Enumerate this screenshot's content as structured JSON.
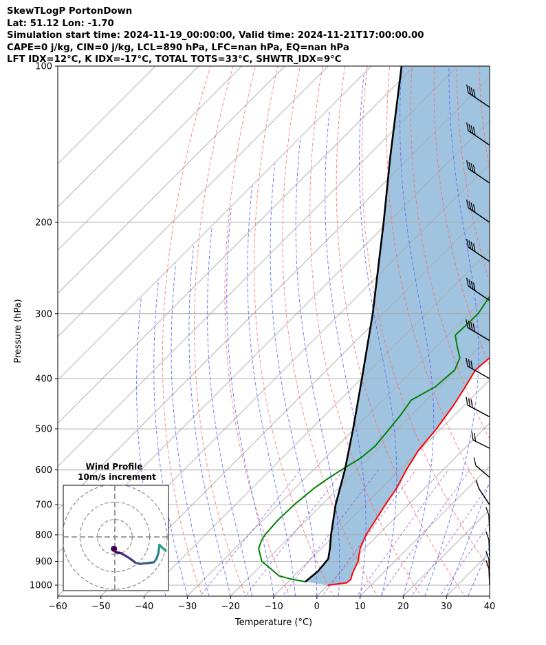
{
  "header": {
    "line1": "SkewTLogP PortonDown",
    "line2": "Lat: 51.12   Lon: -1.70",
    "line3": "Simulation start time: 2024-11-19_00:00:00, Valid time: 2024-11-21T17:00:00.00",
    "line4": "CAPE=0 j/kg, CIN=0 j/kg, LCL=890 hPa, LFC=nan hPa, EQ=nan hPa",
    "line5": "LFT IDX=12°C, K IDX=-17°C, TOTAL TOTS=33°C, SHWTR_IDX=9°C"
  },
  "chart_data": [
    {
      "type": "line",
      "subtype": "skew-t-log-p",
      "xlabel": "Temperature (°C)",
      "ylabel": "Pressure (hPa)",
      "xlim": [
        -60,
        40
      ],
      "ylim": [
        1050,
        100
      ],
      "y_scale": "log",
      "x_ticks": [
        -60,
        -50,
        -40,
        -30,
        -20,
        -10,
        0,
        10,
        20,
        30,
        40
      ],
      "x_tick_labels": [
        "−60",
        "−50",
        "−40",
        "−30",
        "−20",
        "−10",
        "0",
        "10",
        "20",
        "30",
        "40"
      ],
      "y_ticks": [
        100,
        200,
        300,
        400,
        500,
        600,
        700,
        800,
        900,
        1000
      ],
      "y_tick_labels": [
        "100",
        "200",
        "300",
        "400",
        "500",
        "600",
        "700",
        "800",
        "900",
        "1000"
      ],
      "grid": true,
      "colors": {
        "temperature": "#ff0000",
        "dewpoint": "#008000",
        "parcel": "#000000",
        "dry_adiabats": "#ff6666",
        "moist_adiabats": "#5566ff",
        "isotherms": "#a9a9a9",
        "mixing_ratio": "#8844cc",
        "shading": "#a0c4e0"
      },
      "series": [
        {
          "role": "temperature",
          "points": [
            [
              1000,
              0
            ],
            [
              990,
              3.8
            ],
            [
              975,
              4
            ],
            [
              950,
              3
            ],
            [
              900,
              1.5
            ],
            [
              850,
              -1
            ],
            [
              800,
              -2.8
            ],
            [
              750,
              -4
            ],
            [
              700,
              -5.3
            ],
            [
              650,
              -6.5
            ],
            [
              600,
              -8.5
            ],
            [
              550,
              -10.2
            ],
            [
              500,
              -11
            ],
            [
              450,
              -12.5
            ],
            [
              420,
              -13.8
            ],
            [
              385,
              -15.6
            ],
            [
              360,
              -15
            ],
            [
              330,
              -13.7
            ],
            [
              300,
              -13.8
            ],
            [
              280,
              -14
            ],
            [
              260,
              -13.5
            ],
            [
              240,
              -13.8
            ],
            [
              220,
              -15.2
            ],
            [
              200,
              -17.8
            ],
            [
              180,
              -20.5
            ],
            [
              160,
              -23
            ],
            [
              140,
              -27.2
            ],
            [
              120,
              -32.5
            ],
            [
              100,
              -40
            ]
          ]
        },
        {
          "role": "dewpoint",
          "points": [
            [
              985,
              -6
            ],
            [
              975,
              -9.5
            ],
            [
              960,
              -13.4
            ],
            [
              930,
              -17
            ],
            [
              900,
              -20.8
            ],
            [
              850,
              -24.5
            ],
            [
              820,
              -25.7
            ],
            [
              800,
              -26.2
            ],
            [
              750,
              -26.6
            ],
            [
              700,
              -26.4
            ],
            [
              650,
              -25.6
            ],
            [
              620,
              -24.5
            ],
            [
              590,
              -23
            ],
            [
              570,
              -21.8
            ],
            [
              540,
              -21.2
            ],
            [
              510,
              -21.7
            ],
            [
              470,
              -22.5
            ],
            [
              440,
              -23.5
            ],
            [
              415,
              -21
            ],
            [
              385,
              -20.4
            ],
            [
              365,
              -22
            ],
            [
              345,
              -25.6
            ],
            [
              330,
              -28.3
            ],
            [
              300,
              -28
            ],
            [
              270,
              -29.8
            ],
            [
              240,
              -33.5
            ],
            [
              215,
              -38
            ],
            [
              200,
              -42
            ],
            [
              190,
              -44.5
            ],
            [
              150,
              -48
            ],
            [
              120,
              -53
            ],
            [
              100,
              -58
            ]
          ]
        },
        {
          "role": "parcel",
          "points": [
            [
              985,
              -6
            ],
            [
              940,
              -5.5
            ],
            [
              890,
              -6
            ],
            [
              850,
              -8
            ],
            [
              800,
              -10.9
            ],
            [
              700,
              -16.8
            ],
            [
              600,
              -22.7
            ],
            [
              500,
              -30.3
            ],
            [
              400,
              -39.9
            ],
            [
              300,
              -52.4
            ],
            [
              200,
              -71
            ],
            [
              150,
              -84.5
            ],
            [
              100,
              -103
            ]
          ]
        }
      ]
    },
    {
      "type": "scatter",
      "subtype": "hodograph",
      "title": "Wind Profile",
      "subtitle": "10m/s increment",
      "rings": [
        10,
        20,
        30
      ],
      "x_range": [
        -30,
        30
      ],
      "y_range": [
        -30,
        30
      ],
      "x": [
        -0.5,
        -0.2,
        1,
        2.2,
        3.6,
        6,
        9,
        12,
        14.6,
        16.4,
        19,
        22.5,
        24,
        24.9,
        25.4,
        25.6,
        26.4,
        29.2
      ],
      "y": [
        -6.8,
        -7.9,
        -8.9,
        -9,
        -9.4,
        -10.7,
        -12.6,
        -14.9,
        -15.5,
        -15.2,
        -15,
        -14.5,
        -12.3,
        -9.6,
        -6.3,
        -4.5,
        -5.4,
        -7.9
      ]
    }
  ]
}
